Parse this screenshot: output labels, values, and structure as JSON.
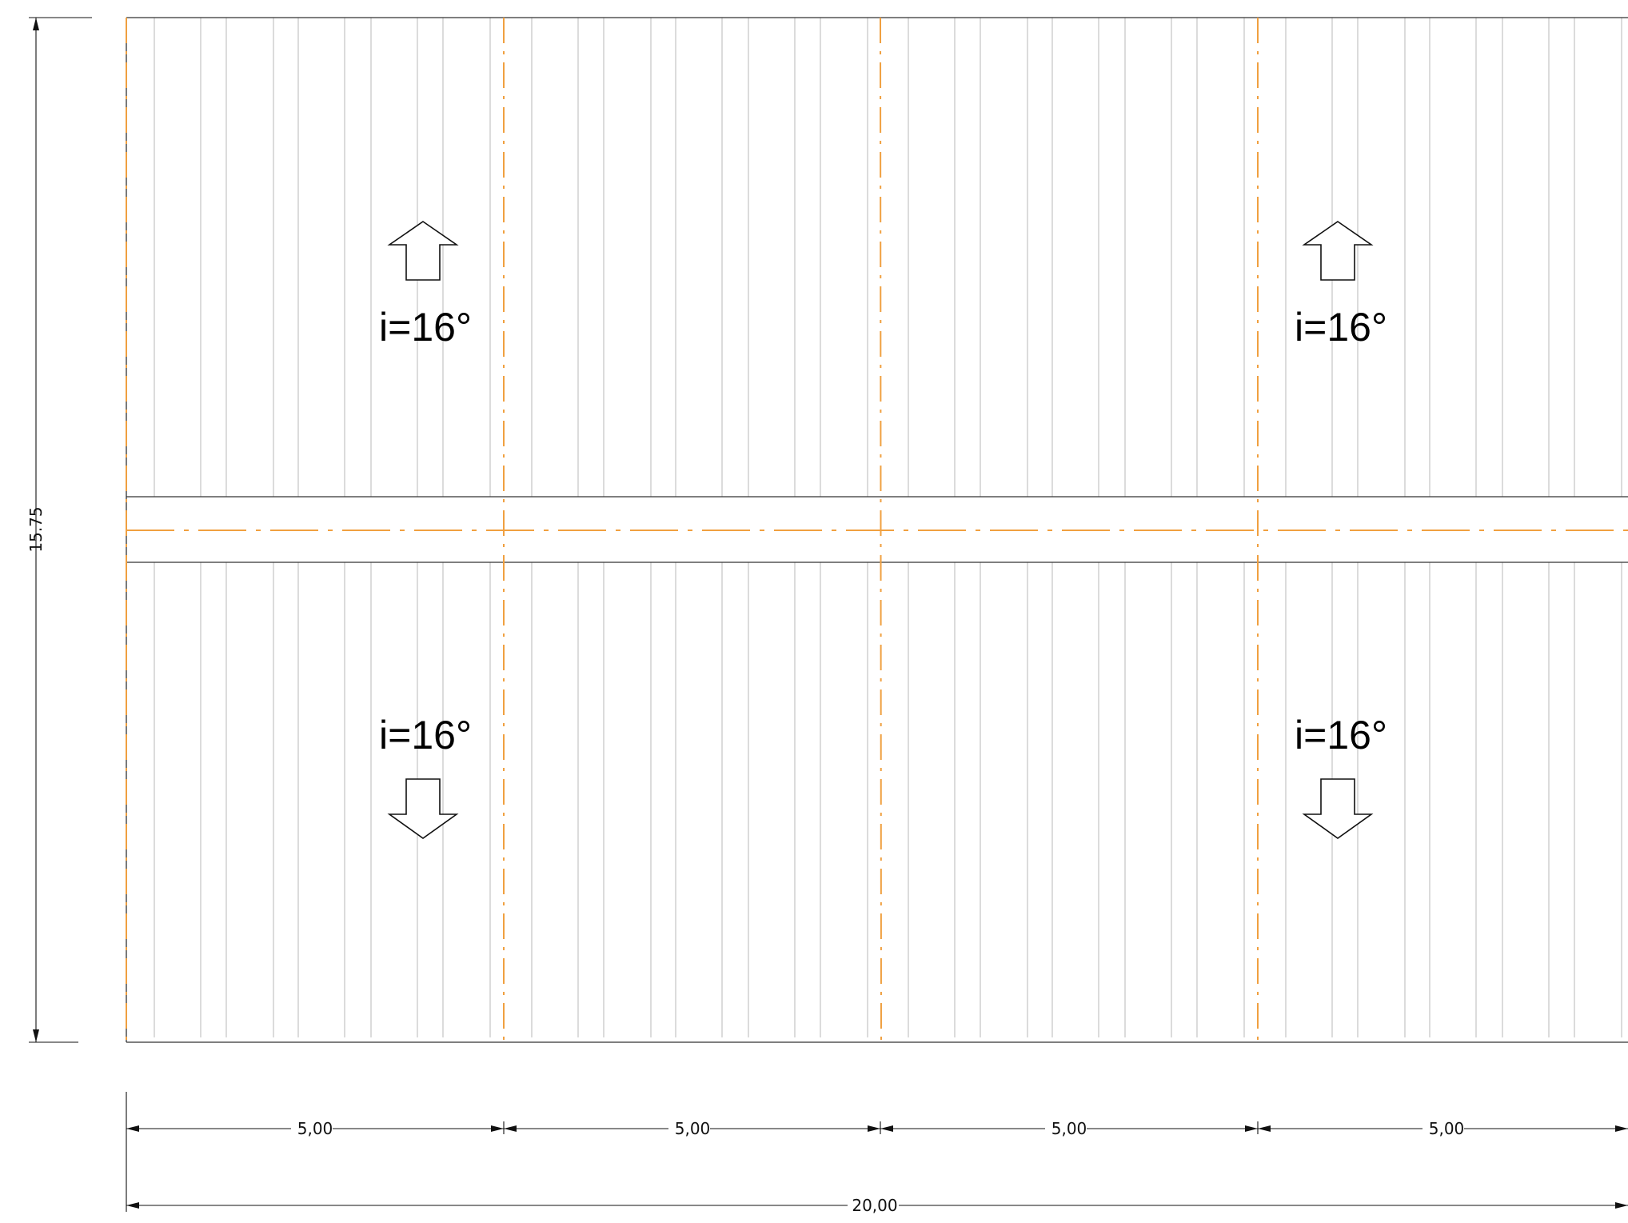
{
  "colors": {
    "outline": "#333333",
    "rib": "#c8c8c8",
    "axis": "#f0a040",
    "dimension": "#111111"
  },
  "slopes": [
    {
      "label": "i=16°",
      "direction": "up"
    },
    {
      "label": "i=16°",
      "direction": "up"
    },
    {
      "label": "i=16°",
      "direction": "down"
    },
    {
      "label": "i=16°",
      "direction": "down"
    }
  ],
  "dimensions": {
    "height": "15.75",
    "spans": [
      "5,00",
      "5,00",
      "5,00",
      "5,00"
    ],
    "total": "20,00"
  }
}
